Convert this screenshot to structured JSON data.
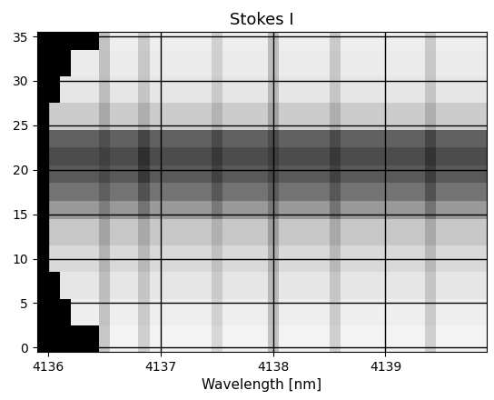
{
  "chart_data": {
    "type": "heatmap",
    "title": "Stokes I",
    "x_label": "Wavelength [nm]",
    "xlim": [
      4135.9,
      4139.9
    ],
    "xticks": [
      4136,
      4137,
      4138,
      4139
    ],
    "ylim": [
      -0.5,
      35.5
    ],
    "yticks": [
      0,
      5,
      10,
      15,
      20,
      25,
      30,
      35
    ],
    "grid": true,
    "color": "gray",
    "cell_range": [
      0,
      1
    ],
    "x_edges": [
      4135.9,
      4136.0,
      4136.1,
      4136.2,
      4136.3,
      4136.45,
      4136.55,
      4136.8,
      4136.9,
      4137.45,
      4137.55,
      4137.95,
      4138.05,
      4138.5,
      4138.6,
      4139.35,
      4139.45,
      4139.9
    ],
    "y_edges": [
      -0.5,
      2.5,
      5.5,
      8.5,
      11.5,
      14.5,
      16.5,
      18.5,
      20.5,
      22.5,
      24.5,
      27.5,
      30.5,
      33.5,
      35.5
    ],
    "cells": [
      [
        0,
        0,
        0,
        0,
        0,
        0.78,
        0.95,
        0.81,
        0.95,
        0.84,
        0.95,
        0.76,
        0.95,
        0.81,
        0.95,
        0.81,
        0.95
      ],
      [
        0,
        0,
        0,
        0.93,
        0.93,
        0.76,
        0.93,
        0.79,
        0.93,
        0.82,
        0.93,
        0.74,
        0.93,
        0.79,
        0.93,
        0.79,
        0.93
      ],
      [
        0,
        0,
        0.9,
        0.9,
        0.9,
        0.74,
        0.9,
        0.77,
        0.9,
        0.79,
        0.9,
        0.72,
        0.9,
        0.77,
        0.9,
        0.77,
        0.9
      ],
      [
        0,
        0.85,
        0.85,
        0.85,
        0.85,
        0.7,
        0.85,
        0.72,
        0.85,
        0.75,
        0.85,
        0.68,
        0.85,
        0.72,
        0.85,
        0.72,
        0.85
      ],
      [
        0,
        0.78,
        0.78,
        0.78,
        0.78,
        0.64,
        0.78,
        0.66,
        0.78,
        0.69,
        0.78,
        0.62,
        0.78,
        0.66,
        0.78,
        0.66,
        0.78
      ],
      [
        0,
        0.6,
        0.6,
        0.6,
        0.6,
        0.49,
        0.6,
        0.45,
        0.6,
        0.47,
        0.6,
        0.48,
        0.6,
        0.45,
        0.6,
        0.45,
        0.6
      ],
      [
        0,
        0.45,
        0.45,
        0.45,
        0.45,
        0.37,
        0.45,
        0.32,
        0.45,
        0.34,
        0.45,
        0.36,
        0.45,
        0.34,
        0.45,
        0.32,
        0.45
      ],
      [
        0,
        0.35,
        0.35,
        0.35,
        0.35,
        0.29,
        0.35,
        0.22,
        0.35,
        0.26,
        0.35,
        0.28,
        0.35,
        0.26,
        0.35,
        0.24,
        0.35
      ],
      [
        0,
        0.3,
        0.3,
        0.3,
        0.3,
        0.25,
        0.3,
        0.18,
        0.3,
        0.22,
        0.3,
        0.24,
        0.3,
        0.22,
        0.3,
        0.2,
        0.3
      ],
      [
        0,
        0.38,
        0.38,
        0.38,
        0.38,
        0.31,
        0.38,
        0.27,
        0.38,
        0.29,
        0.38,
        0.3,
        0.38,
        0.29,
        0.38,
        0.27,
        0.38
      ],
      [
        0,
        0.8,
        0.8,
        0.8,
        0.8,
        0.66,
        0.8,
        0.68,
        0.8,
        0.7,
        0.8,
        0.64,
        0.8,
        0.68,
        0.8,
        0.68,
        0.8
      ],
      [
        0,
        0,
        0.9,
        0.9,
        0.9,
        0.74,
        0.9,
        0.77,
        0.9,
        0.79,
        0.9,
        0.72,
        0.9,
        0.77,
        0.9,
        0.77,
        0.9
      ],
      [
        0,
        0,
        0,
        0.92,
        0.92,
        0.75,
        0.92,
        0.78,
        0.92,
        0.81,
        0.92,
        0.74,
        0.92,
        0.78,
        0.92,
        0.78,
        0.92
      ],
      [
        0,
        0,
        0,
        0,
        0,
        0.76,
        0.93,
        0.79,
        0.93,
        0.82,
        0.93,
        0.74,
        0.93,
        0.79,
        0.93,
        0.79,
        0.93
      ]
    ]
  }
}
